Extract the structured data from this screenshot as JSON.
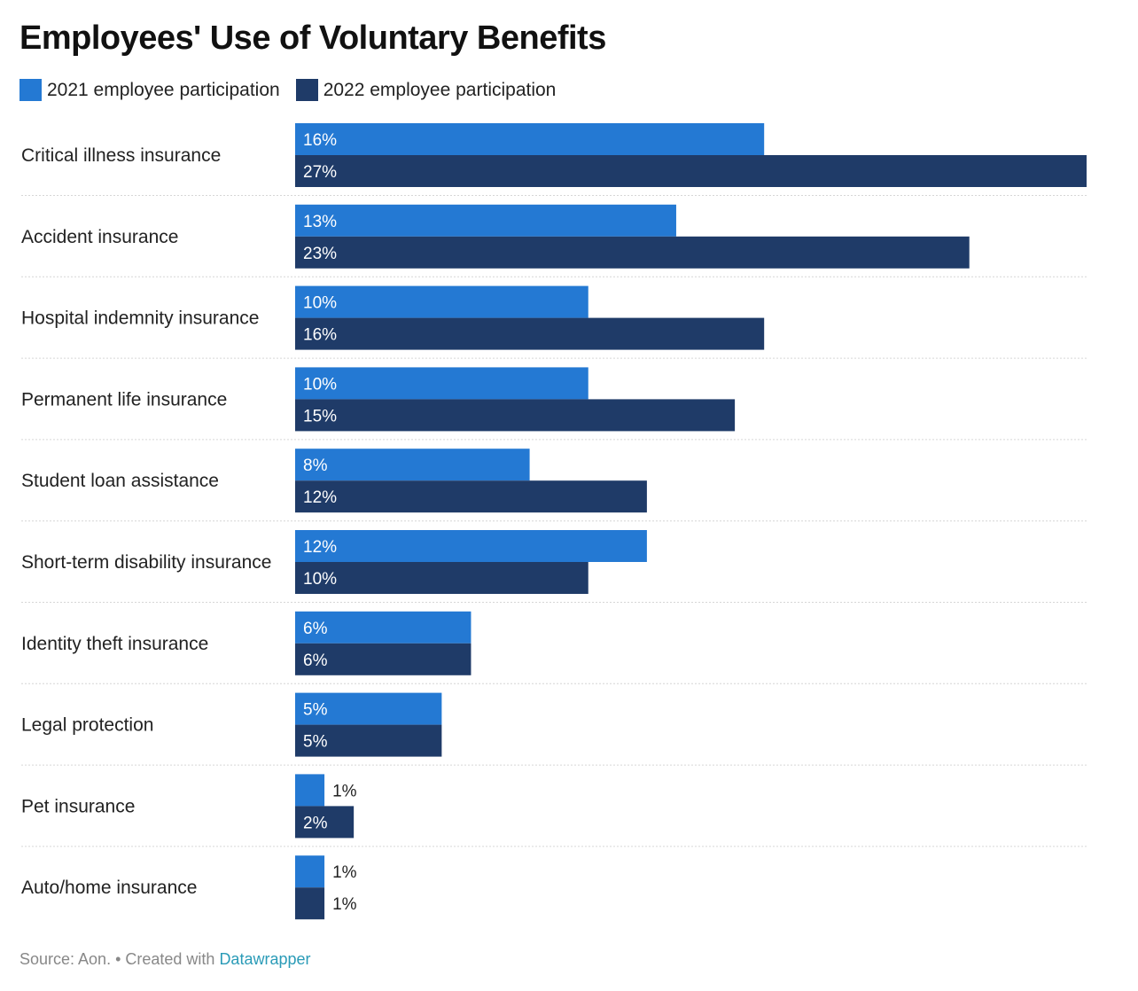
{
  "title": "Employees' Use of Voluntary Benefits",
  "footer": {
    "source": "Source: Aon.",
    "separator": " • Created with ",
    "credit": "Datawrapper"
  },
  "chart_data": {
    "type": "bar",
    "orientation": "horizontal",
    "title": "Employees' Use of Voluntary Benefits",
    "legend_position": "top-left",
    "grid": false,
    "xlim": [
      0,
      27
    ],
    "categories": [
      "Critical illness insurance",
      "Accident insurance",
      "Hospital indemnity insurance",
      "Permanent life insurance",
      "Student loan assistance",
      "Short-term disability insurance",
      "Identity theft insurance",
      "Legal protection",
      "Pet insurance",
      "Auto/home insurance"
    ],
    "series": [
      {
        "name": "2021 employee participation",
        "color": "#2479d3",
        "values": [
          16,
          13,
          10,
          10,
          8,
          12,
          6,
          5,
          1,
          1
        ]
      },
      {
        "name": "2022 employee participation",
        "color": "#1f3b68",
        "values": [
          27,
          23,
          16,
          15,
          12,
          10,
          6,
          5,
          2,
          1
        ]
      }
    ],
    "value_suffix": "%"
  }
}
